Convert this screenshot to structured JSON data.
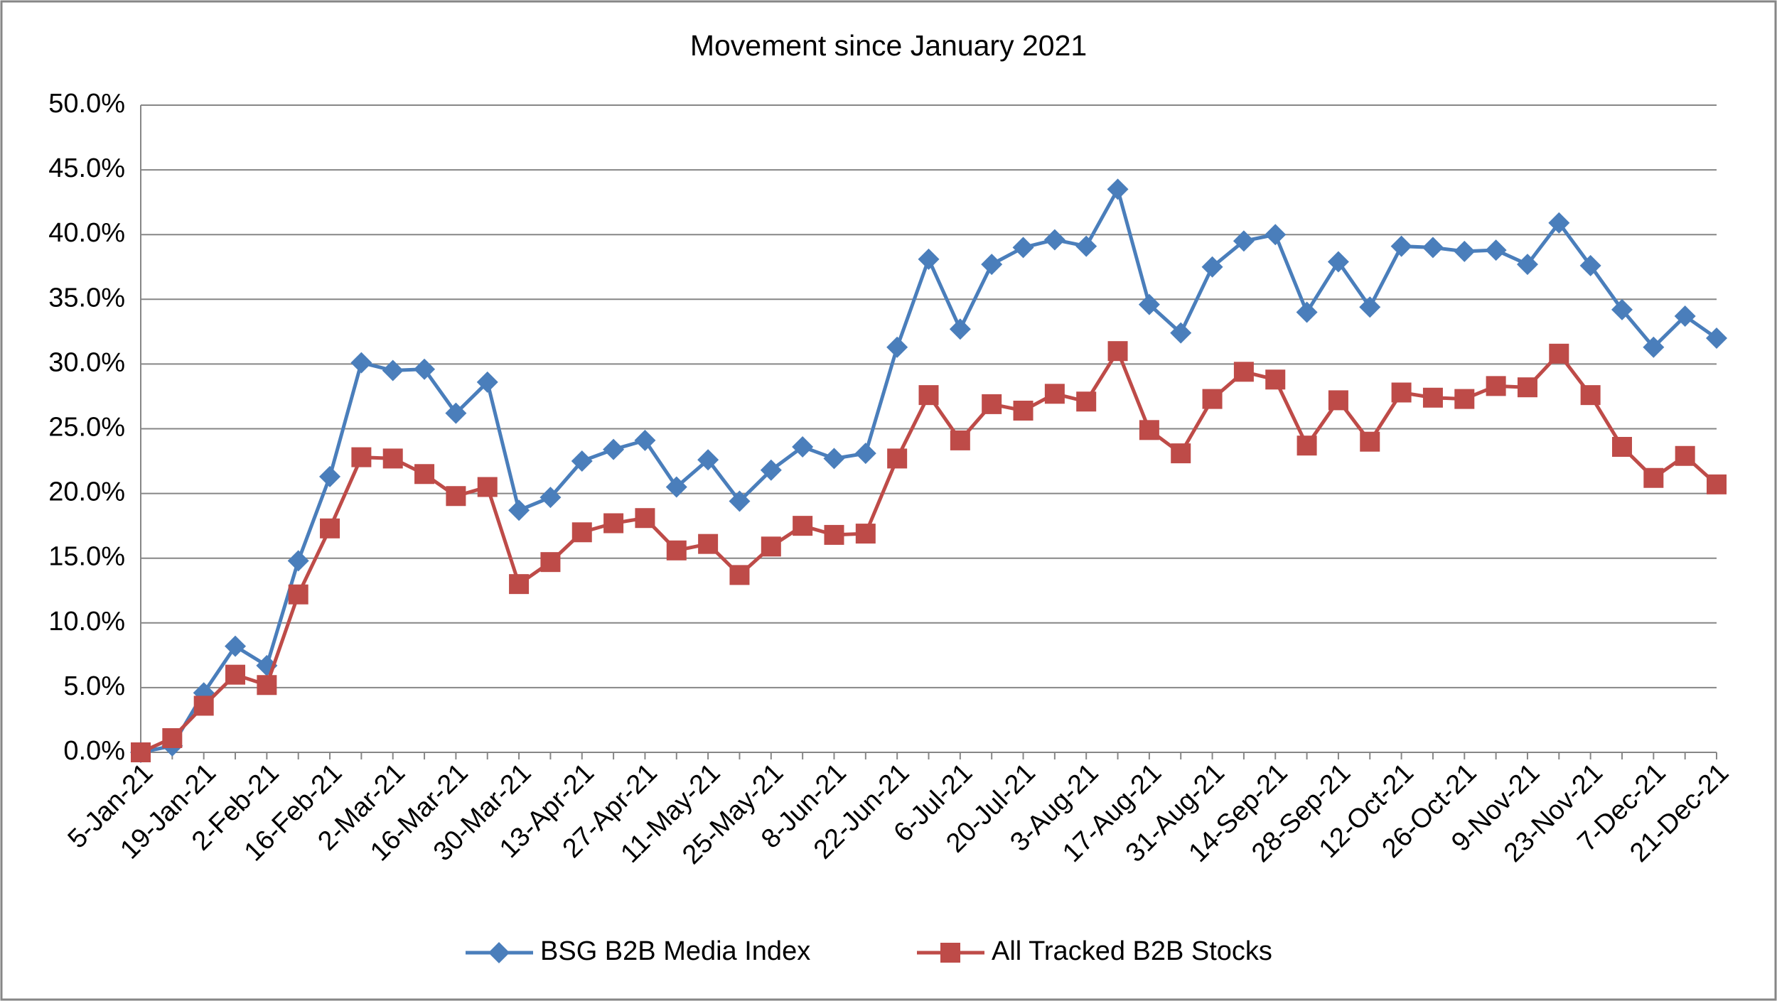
{
  "chart_data": {
    "type": "line",
    "title": "Movement since January 2021",
    "categories": [
      "5-Jan-21",
      null,
      "19-Jan-21",
      null,
      "2-Feb-21",
      null,
      "16-Feb-21",
      null,
      "2-Mar-21",
      null,
      "16-Mar-21",
      null,
      "30-Mar-21",
      null,
      "13-Apr-21",
      null,
      "27-Apr-21",
      null,
      "11-May-21",
      null,
      "25-May-21",
      null,
      "8-Jun-21",
      null,
      "22-Jun-21",
      null,
      "6-Jul-21",
      null,
      "20-Jul-21",
      null,
      "3-Aug-21",
      null,
      "17-Aug-21",
      null,
      "31-Aug-21",
      null,
      "14-Sep-21",
      null,
      "28-Sep-21",
      null,
      "12-Oct-21",
      null,
      "26-Oct-21",
      null,
      "9-Nov-21",
      null,
      "23-Nov-21",
      null,
      "7-Dec-21",
      null,
      "21-Dec-21"
    ],
    "series": [
      {
        "name": "BSG B2B Media Index",
        "color": "#4a7ebb",
        "marker": "diamond",
        "values": [
          0,
          0.5,
          4.6,
          8.2,
          6.7,
          14.8,
          21.3,
          30.1,
          29.5,
          29.6,
          26.2,
          28.6,
          18.7,
          19.7,
          22.5,
          23.4,
          24.1,
          20.5,
          22.6,
          19.4,
          21.8,
          23.6,
          22.7,
          23.1,
          31.3,
          38.1,
          32.7,
          37.7,
          39.0,
          39.6,
          39.1,
          43.5,
          34.6,
          32.4,
          37.5,
          39.5,
          40.0,
          34.0,
          37.9,
          34.4,
          39.1,
          39.0,
          38.7,
          38.8,
          37.7,
          40.9,
          37.6,
          34.2,
          31.3,
          33.7,
          32.0
        ]
      },
      {
        "name": "All Tracked B2B Stocks",
        "color": "#be4b48",
        "marker": "square",
        "values": [
          0,
          1.1,
          3.6,
          6.0,
          5.2,
          12.2,
          17.3,
          22.8,
          22.7,
          21.5,
          19.8,
          20.5,
          13.0,
          14.7,
          17.0,
          17.7,
          18.1,
          15.6,
          16.1,
          13.7,
          15.9,
          17.5,
          16.8,
          16.9,
          22.7,
          27.6,
          24.1,
          26.9,
          26.4,
          27.7,
          27.1,
          31.0,
          24.9,
          23.1,
          27.3,
          29.4,
          28.8,
          23.7,
          27.2,
          24.0,
          27.8,
          27.4,
          27.3,
          28.3,
          28.2,
          30.8,
          27.6,
          23.6,
          21.2,
          22.9,
          20.7
        ]
      }
    ],
    "ylim": [
      0,
      50
    ],
    "yticks": [
      {
        "value": 0,
        "label": "0.0%"
      },
      {
        "value": 5,
        "label": "5.0%"
      },
      {
        "value": 10,
        "label": "10.0%"
      },
      {
        "value": 15,
        "label": "15.0%"
      },
      {
        "value": 20,
        "label": "20.0%"
      },
      {
        "value": 25,
        "label": "25.0%"
      },
      {
        "value": 30,
        "label": "30.0%"
      },
      {
        "value": 35,
        "label": "35.0%"
      },
      {
        "value": 40,
        "label": "40.0%"
      },
      {
        "value": 45,
        "label": "45.0%"
      },
      {
        "value": 50,
        "label": "50.0%"
      }
    ],
    "grid": true,
    "legend": "bottom"
  }
}
